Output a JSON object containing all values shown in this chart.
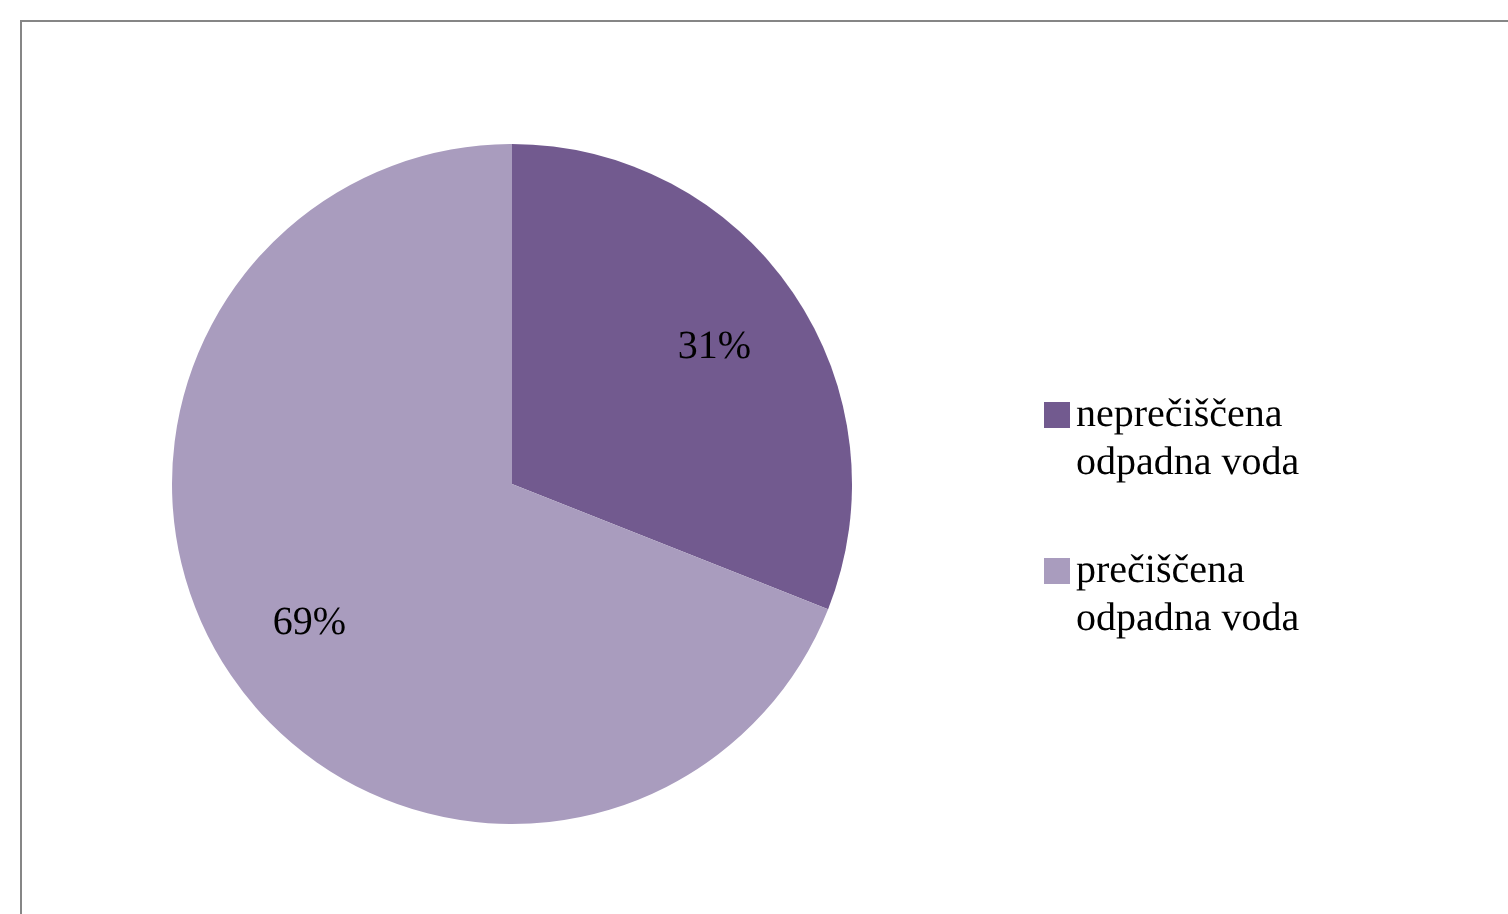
{
  "chart_data": {
    "type": "pie",
    "categories": [
      "neprečiščena odpadna voda",
      "prečiščena odpadna voda"
    ],
    "values": [
      31,
      69
    ],
    "value_labels": [
      "31%",
      "69%"
    ],
    "colors": [
      "#725a8f",
      "#a99cbe"
    ],
    "legend": "right"
  }
}
